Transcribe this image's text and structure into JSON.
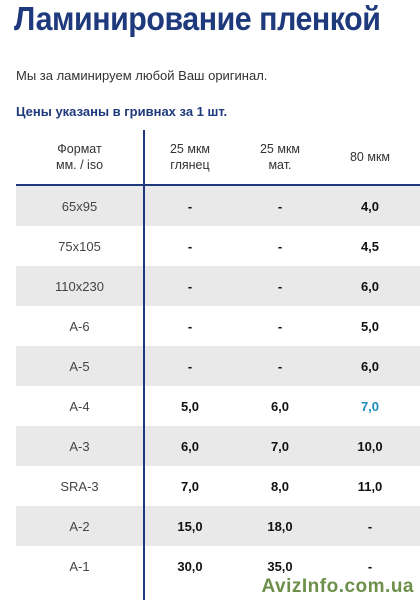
{
  "page": {
    "title": "Ламинирование пленкой",
    "intro": "Мы за ламинируем любой Ваш оригинал.",
    "subheading": "Цены указаны в гривнах за 1 шт."
  },
  "table": {
    "headers": [
      "Формат\nмм. / iso",
      "25 мкм\nглянец",
      "25 мкм\nмат.",
      "80 мкм"
    ],
    "rows": [
      {
        "format": "65x95",
        "gloss25": "-",
        "matte25": "-",
        "mkm80": "4,0"
      },
      {
        "format": "75x105",
        "gloss25": "-",
        "matte25": "-",
        "mkm80": "4,5"
      },
      {
        "format": "110x230",
        "gloss25": "-",
        "matte25": "-",
        "mkm80": "6,0"
      },
      {
        "format": "А-6",
        "gloss25": "-",
        "matte25": "-",
        "mkm80": "5,0"
      },
      {
        "format": "А-5",
        "gloss25": "-",
        "matte25": "-",
        "mkm80": "6,0"
      },
      {
        "format": "А-4",
        "gloss25": "5,0",
        "matte25": "6,0",
        "mkm80": "7,0"
      },
      {
        "format": "А-3",
        "gloss25": "6,0",
        "matte25": "7,0",
        "mkm80": "10,0"
      },
      {
        "format": "SRA-3",
        "gloss25": "7,0",
        "matte25": "8,0",
        "mkm80": "11,0"
      },
      {
        "format": "А-2",
        "gloss25": "15,0",
        "matte25": "18,0",
        "mkm80": "-"
      },
      {
        "format": "А-1",
        "gloss25": "30,0",
        "matte25": "35,0",
        "mkm80": "-"
      }
    ],
    "highlighted_cell": {
      "row": "А-4",
      "column": "80 мкм",
      "color": "#1b8cc0"
    }
  },
  "colors": {
    "brand": "#1e3a7c",
    "accent": "#1b8cc0",
    "row_stripe": "#e9e9e9"
  },
  "watermark": "AvizInfo.com.ua"
}
